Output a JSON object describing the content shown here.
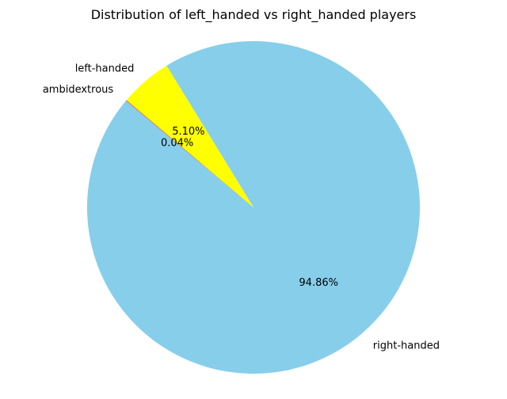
{
  "chart_data": {
    "type": "pie",
    "title": "Distribution of left_handed vs right_handed players",
    "categories": [
      "right-handed",
      "left-handed",
      "ambidextrous"
    ],
    "values": [
      94.86,
      5.1,
      0.04
    ],
    "percent_labels": [
      "94.86%",
      "5.10%",
      "0.04%"
    ],
    "colors": [
      "#87CEEB",
      "#FFFF00",
      "#FF0000"
    ],
    "start_angle_deg": 140,
    "counterclockwise": true,
    "legend": "none"
  }
}
